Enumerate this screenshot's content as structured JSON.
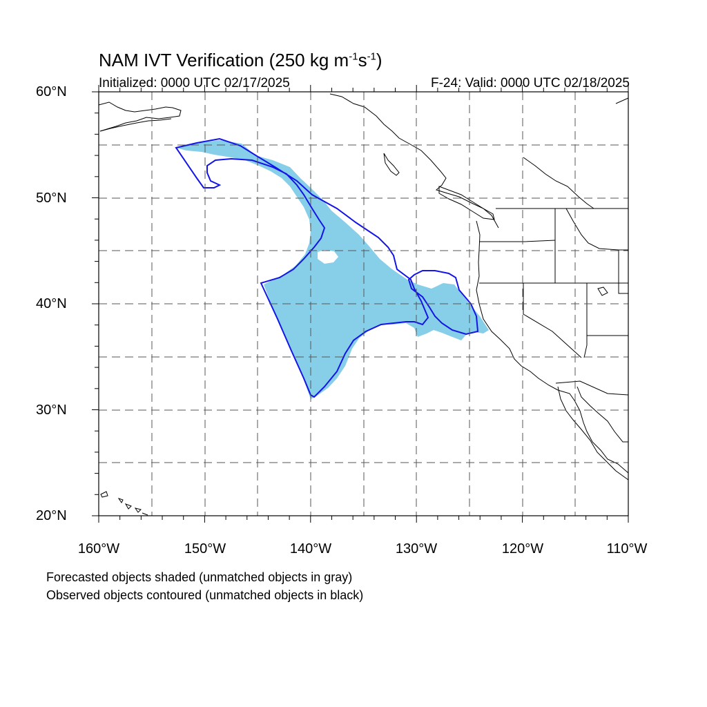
{
  "header": {
    "title_main": "NAM IVT Verification (250 kg m",
    "title_exp1": "-1",
    "title_mid": "s",
    "title_exp2": "-1",
    "title_end": ")",
    "initialized": "Initialized: 0000 UTC 02/17/2025",
    "valid": "F-24: Valid: 0000 UTC 02/18/2025"
  },
  "axes": {
    "lat_labels": [
      "60°N",
      "50°N",
      "40°N",
      "30°N",
      "20°N"
    ],
    "lon_labels": [
      "160°W",
      "150°W",
      "140°W",
      "130°W",
      "120°W",
      "110°W"
    ],
    "lat_range": [
      20,
      60
    ],
    "lon_range": [
      -160,
      -110
    ]
  },
  "legend": {
    "line1": "Forecasted objects shaded (unmatched objects in gray)",
    "line2": "Observed objects contoured (unmatched objects in black)"
  },
  "colors": {
    "forecast_fill": "#87CEE8",
    "observed_contour": "#1414E6",
    "coastline": "#000000",
    "gridline": "#555555"
  }
}
